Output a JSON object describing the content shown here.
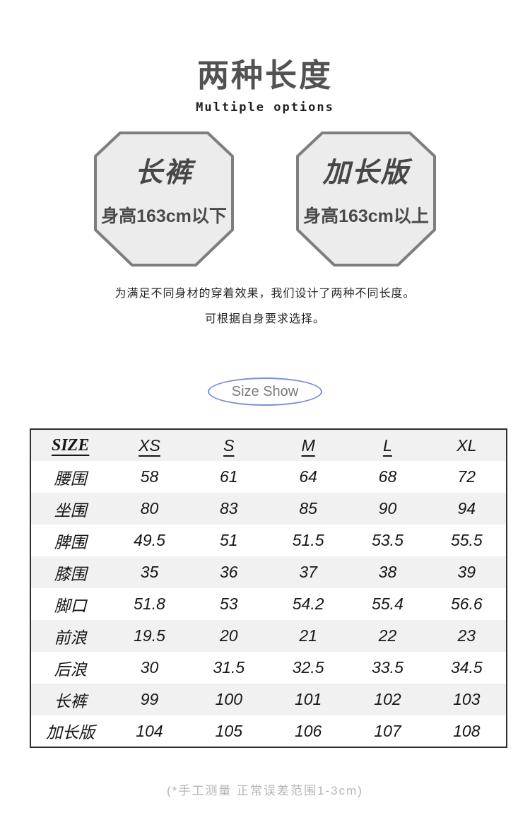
{
  "header": {
    "title": "两种长度",
    "subtitle": "Multiple options"
  },
  "options": [
    {
      "title": "长裤",
      "desc": "身高163cm以下"
    },
    {
      "title": "加长版",
      "desc": "身高163cm以上"
    }
  ],
  "option_shape": {
    "fill": "#ececec",
    "stroke": "#7e7e7e"
  },
  "intro": {
    "line1": "为满足不同身材的穿着效果，我们设计了两种不同长度。",
    "line2": "可根据自身要求选择。"
  },
  "size_show": {
    "label": "Size Show",
    "ellipse_color": "#7b8ed6"
  },
  "size_table": {
    "headers": [
      {
        "label": "SIZE",
        "underline": true,
        "serif": true
      },
      {
        "label": "XS",
        "underline": true,
        "serif": false
      },
      {
        "label": "S",
        "underline": true,
        "serif": false
      },
      {
        "label": "M",
        "underline": true,
        "serif": false
      },
      {
        "label": "L",
        "underline": true,
        "serif": false
      },
      {
        "label": "XL",
        "underline": false,
        "serif": false
      }
    ],
    "rows": [
      {
        "label": "腰围",
        "values": [
          "58",
          "61",
          "64",
          "68",
          "72"
        ]
      },
      {
        "label": "坐围",
        "values": [
          "80",
          "83",
          "85",
          "90",
          "94"
        ]
      },
      {
        "label": "脾围",
        "values": [
          "49.5",
          "51",
          "51.5",
          "53.5",
          "55.5"
        ]
      },
      {
        "label": "膝围",
        "values": [
          "35",
          "36",
          "37",
          "38",
          "39"
        ]
      },
      {
        "label": "脚口",
        "values": [
          "51.8",
          "53",
          "54.2",
          "55.4",
          "56.6"
        ]
      },
      {
        "label": "前浪",
        "values": [
          "19.5",
          "20",
          "21",
          "22",
          "23"
        ]
      },
      {
        "label": "后浪",
        "values": [
          "30",
          "31.5",
          "32.5",
          "33.5",
          "34.5"
        ]
      },
      {
        "label": "长裤",
        "values": [
          "99",
          "100",
          "101",
          "102",
          "103"
        ]
      },
      {
        "label": "加长版",
        "values": [
          "104",
          "105",
          "106",
          "107",
          "108"
        ]
      }
    ],
    "alt_row_color": "#f1f1f1",
    "border_color": "#2e2e2e"
  },
  "footer": {
    "note": "(*手工测量 正常误差范围1-3cm)"
  }
}
